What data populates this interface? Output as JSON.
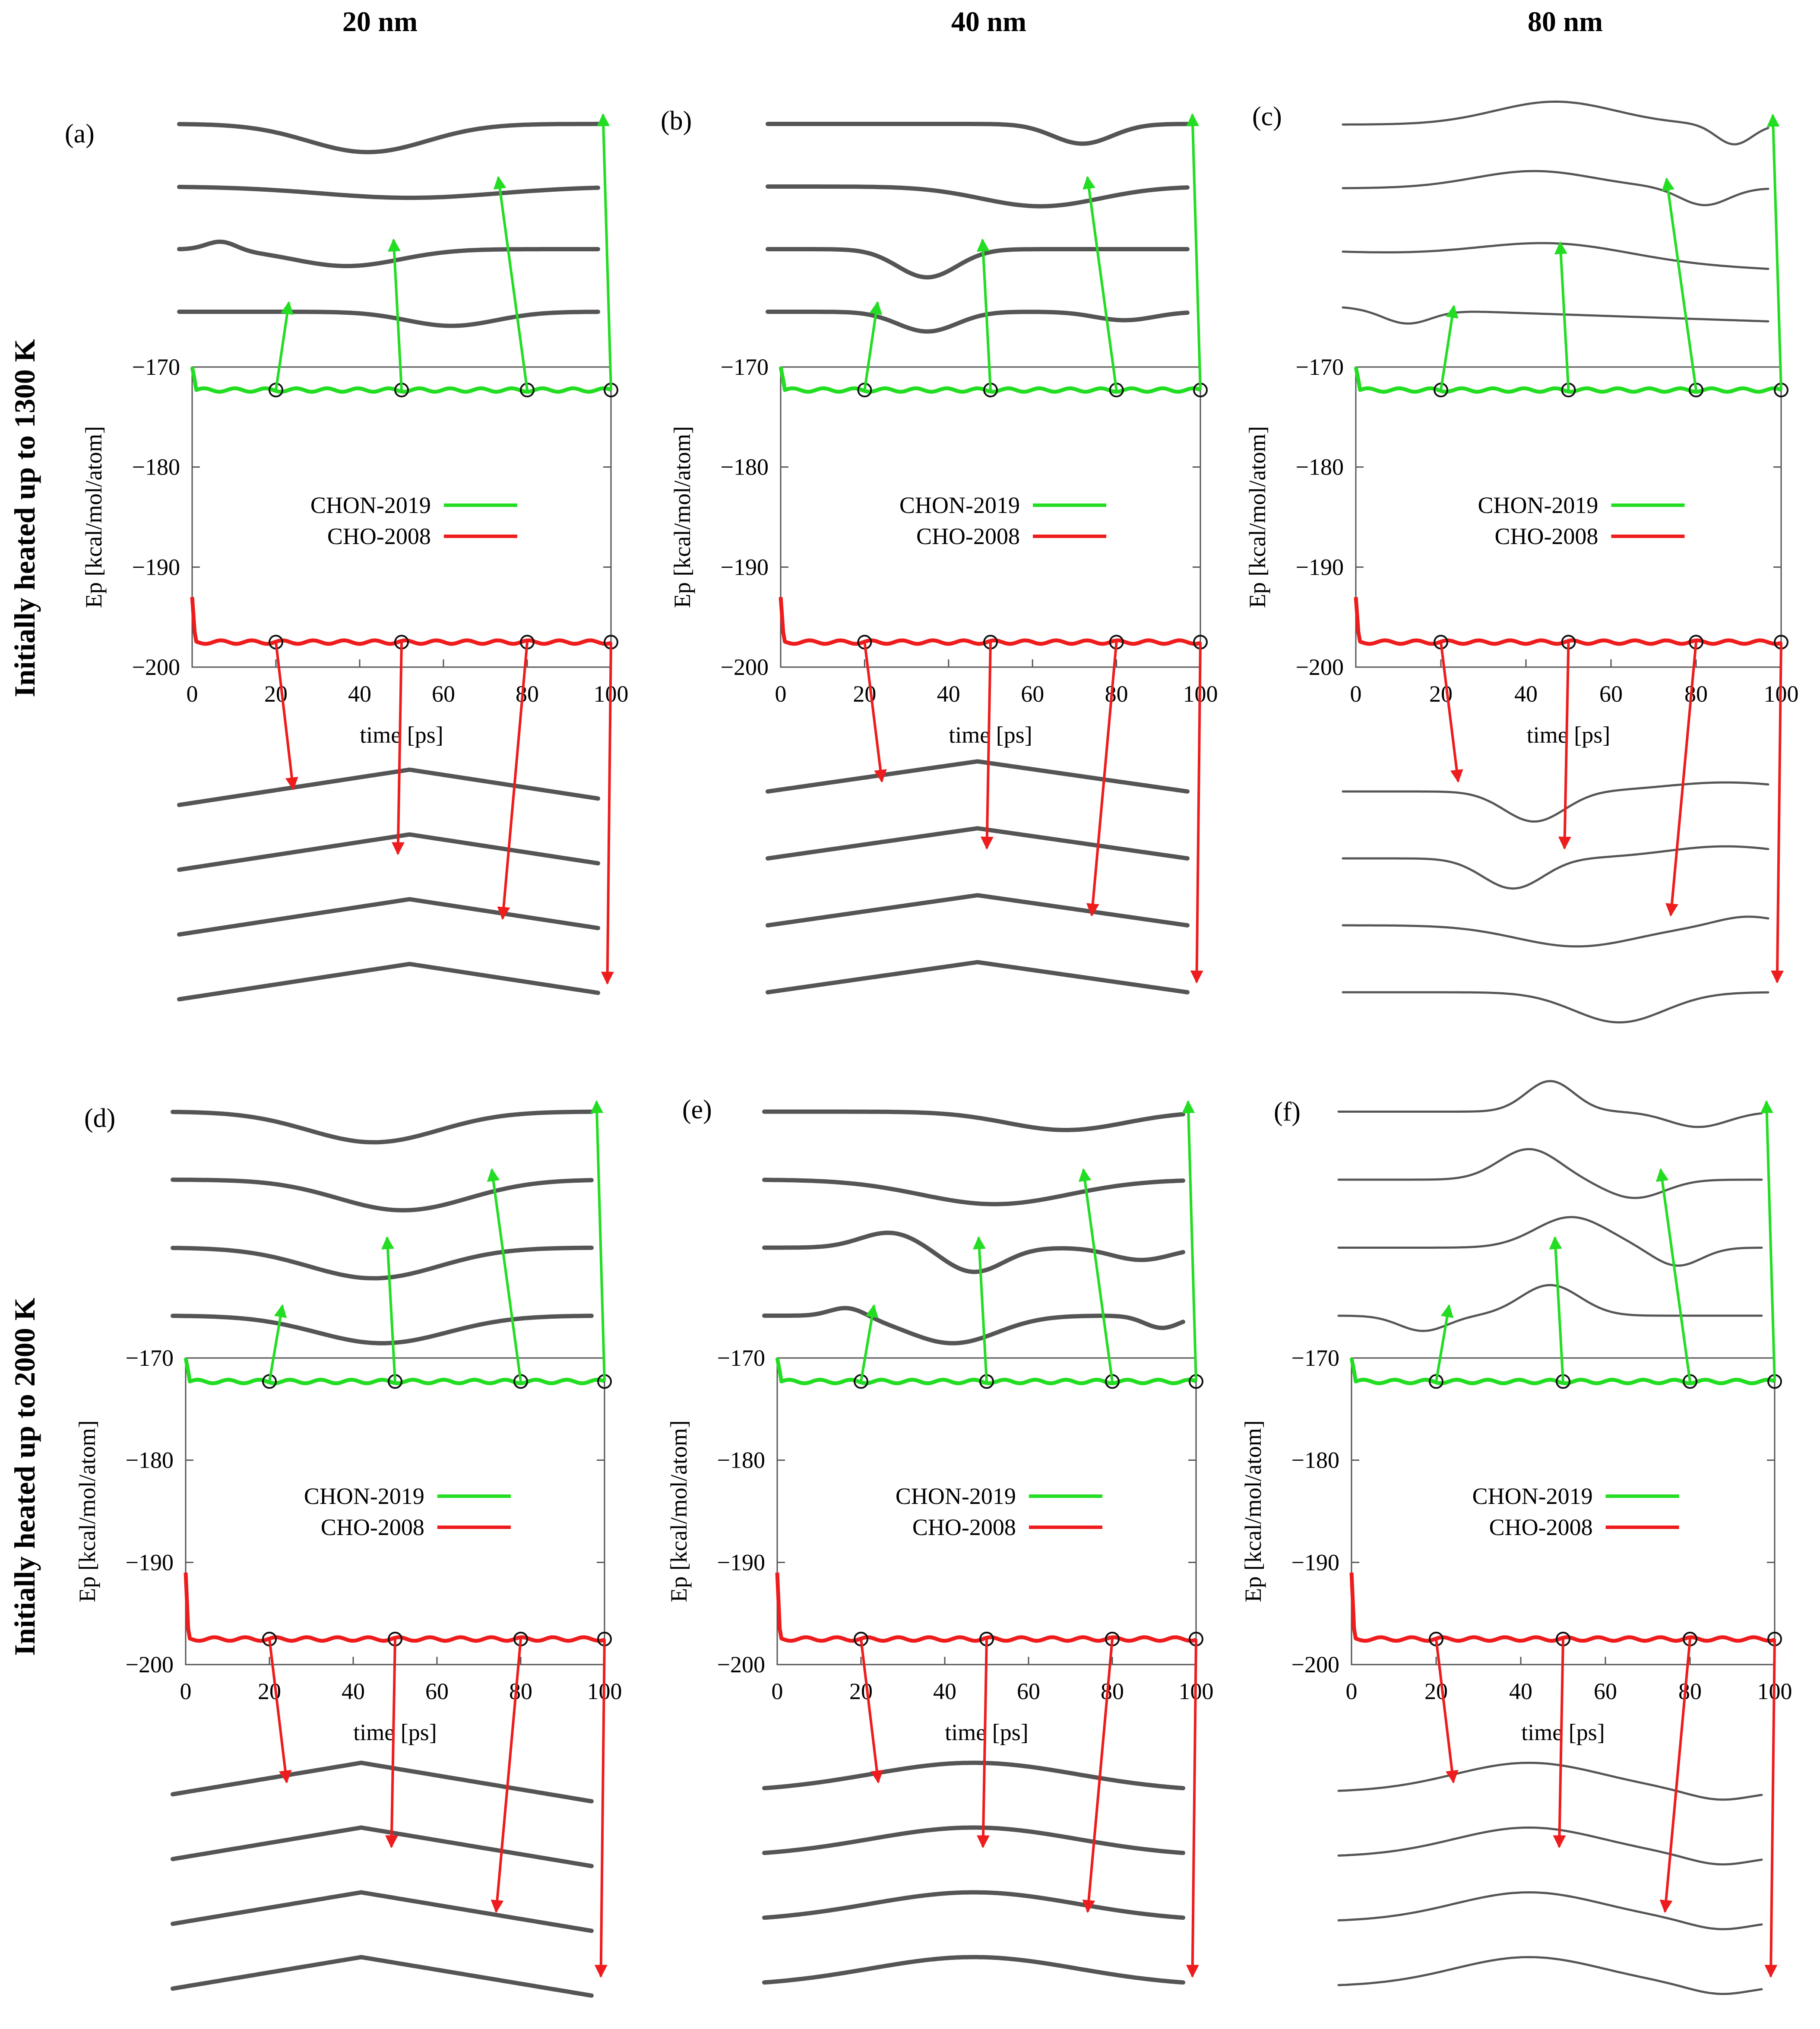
{
  "figure": {
    "column_titles": [
      "20 nm",
      "40 nm",
      "80 nm"
    ],
    "row_titles": [
      "Initially heated up to 1300 K",
      "Initially heated up to 2000 K"
    ]
  },
  "colors": {
    "chon": "#22dd22",
    "cho": "#ee1c1c",
    "structure": "#555555",
    "axes": "#555555"
  },
  "chart_data": [
    {
      "panel": "(a)",
      "size": "20 nm",
      "heated": "1300 K",
      "type": "line",
      "xlabel": "time [ps]",
      "ylabel": "E_p [kcal/mol/atom]",
      "xlim": [
        0,
        100
      ],
      "ylim": [
        -200,
        -170
      ],
      "xticks": [
        "0",
        "20",
        "40",
        "60",
        "80",
        "100"
      ],
      "yticks": [
        "-170",
        "-180",
        "-190",
        "-200"
      ],
      "series": [
        {
          "name": "CHON-2019",
          "color": "green",
          "steady_value": -172.3,
          "start_value": -170.0
        },
        {
          "name": "CHO-2008",
          "color": "red",
          "steady_value": -197.5,
          "start_value": -193.0
        }
      ],
      "snapshot_times": [
        20,
        50,
        80,
        100
      ]
    },
    {
      "panel": "(b)",
      "size": "40 nm",
      "heated": "1300 K",
      "type": "line",
      "xlabel": "time [ps]",
      "ylabel": "E_p [kcal/mol/atom]",
      "xlim": [
        0,
        100
      ],
      "ylim": [
        -200,
        -170
      ],
      "xticks": [
        "0",
        "20",
        "40",
        "60",
        "80",
        "100"
      ],
      "yticks": [
        "-170",
        "-180",
        "-190",
        "-200"
      ],
      "series": [
        {
          "name": "CHON-2019",
          "color": "green",
          "steady_value": -172.3,
          "start_value": -170.0
        },
        {
          "name": "CHO-2008",
          "color": "red",
          "steady_value": -197.5,
          "start_value": -193.0
        }
      ],
      "snapshot_times": [
        20,
        50,
        80,
        100
      ]
    },
    {
      "panel": "(c)",
      "size": "80 nm",
      "heated": "1300 K",
      "type": "line",
      "xlabel": "time [ps]",
      "ylabel": "E_p [kcal/mol/atom]",
      "xlim": [
        0,
        100
      ],
      "ylim": [
        -200,
        -170
      ],
      "xticks": [
        "0",
        "20",
        "40",
        "60",
        "80",
        "100"
      ],
      "yticks": [
        "-170",
        "-180",
        "-190",
        "-200"
      ],
      "series": [
        {
          "name": "CHON-2019",
          "color": "green",
          "steady_value": -172.3,
          "start_value": -170.0
        },
        {
          "name": "CHO-2008",
          "color": "red",
          "steady_value": -197.5,
          "start_value": -193.0
        }
      ],
      "snapshot_times": [
        20,
        50,
        80,
        100
      ]
    },
    {
      "panel": "(d)",
      "size": "20 nm",
      "heated": "2000 K",
      "type": "line",
      "xlabel": "time [ps]",
      "ylabel": "E_p [kcal/mol/atom]",
      "xlim": [
        0,
        100
      ],
      "ylim": [
        -200,
        -170
      ],
      "xticks": [
        "0",
        "20",
        "40",
        "60",
        "80",
        "100"
      ],
      "yticks": [
        "-170",
        "-180",
        "-190",
        "-200"
      ],
      "series": [
        {
          "name": "CHON-2019",
          "color": "green",
          "steady_value": -172.3,
          "start_value": -170.0
        },
        {
          "name": "CHO-2008",
          "color": "red",
          "steady_value": -197.5,
          "start_value": -191.0
        }
      ],
      "snapshot_times": [
        20,
        50,
        80,
        100
      ]
    },
    {
      "panel": "(e)",
      "size": "40 nm",
      "heated": "2000 K",
      "type": "line",
      "xlabel": "time [ps]",
      "ylabel": "E_p [kcal/mol/atom]",
      "xlim": [
        0,
        100
      ],
      "ylim": [
        -200,
        -170
      ],
      "xticks": [
        "0",
        "20",
        "40",
        "60",
        "80",
        "100"
      ],
      "yticks": [
        "-170",
        "-180",
        "-190",
        "-200"
      ],
      "series": [
        {
          "name": "CHON-2019",
          "color": "green",
          "steady_value": -172.3,
          "start_value": -170.0
        },
        {
          "name": "CHO-2008",
          "color": "red",
          "steady_value": -197.5,
          "start_value": -191.0
        }
      ],
      "snapshot_times": [
        20,
        50,
        80,
        100
      ]
    },
    {
      "panel": "(f)",
      "size": "80 nm",
      "heated": "2000 K",
      "type": "line",
      "xlabel": "time [ps]",
      "ylabel": "E_p [kcal/mol/atom]",
      "xlim": [
        0,
        100
      ],
      "ylim": [
        -200,
        -170
      ],
      "xticks": [
        "0",
        "20",
        "40",
        "60",
        "80",
        "100"
      ],
      "yticks": [
        "-170",
        "-180",
        "-190",
        "-200"
      ],
      "series": [
        {
          "name": "CHON-2019",
          "color": "green",
          "steady_value": -172.3,
          "start_value": -170.0
        },
        {
          "name": "CHO-2008",
          "color": "red",
          "steady_value": -197.5,
          "start_value": -191.0
        }
      ],
      "snapshot_times": [
        20,
        50,
        80,
        100
      ]
    }
  ]
}
